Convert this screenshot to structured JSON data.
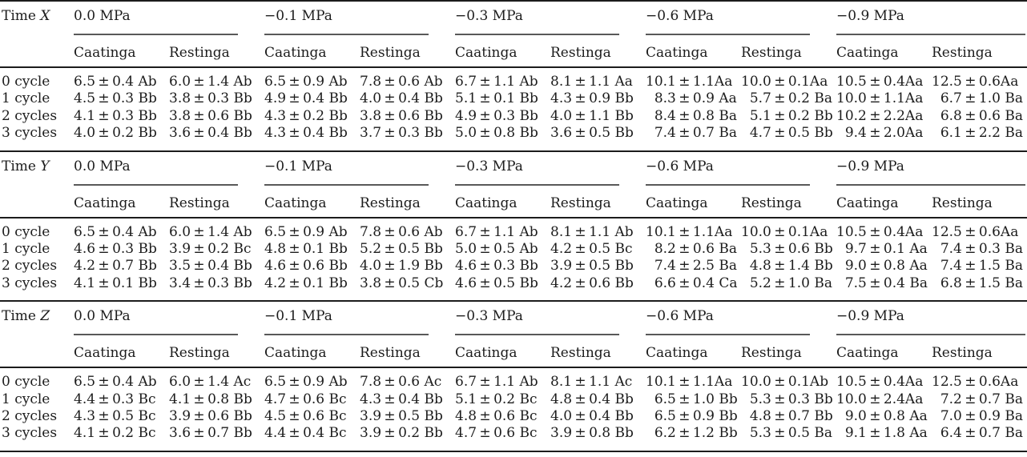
{
  "colors": {
    "background": "#ffffff",
    "text": "#1c1c1c",
    "rule_dark": "#1c1c1c",
    "rule_gray": "#595959"
  },
  "table": {
    "pressure_groups": [
      "0.0 MPa",
      "−0.1 MPa",
      "−0.3 MPa",
      "−0.6 MPa",
      "−0.9 MPa"
    ],
    "site_headers": [
      "Caatinga",
      "Restinga"
    ],
    "row_labels": [
      "0 cycle",
      "1 cycle",
      "2 cycles",
      "3 cycles"
    ],
    "sections": [
      {
        "time_prefix": "Time",
        "time_var": "X",
        "rows": [
          [
            "6.5 ± 0.4 Ab",
            "6.0 ± 1.4 Ab",
            "6.5 ± 0.9 Ab",
            "7.8 ± 0.6 Ab",
            "6.7 ± 1.1 Ab",
            "8.1 ± 1.1 Aa",
            "10.1 ± 1.1Aa",
            "10.0 ± 0.1Aa",
            "10.5 ± 0.4Aa",
            "12.5 ± 0.6Aa"
          ],
          [
            "4.5 ± 0.3 Bb",
            "3.8 ± 0.3 Bb",
            "4.9 ± 0.4 Bb",
            "4.0 ± 0.4 Bb",
            "5.1 ± 0.1 Bb",
            "4.3 ± 0.9 Bb",
            " 8.3 ± 0.9 Aa",
            " 5.7 ± 0.2 Ba",
            "10.0 ± 1.1Aa",
            " 6.7 ± 1.0 Ba"
          ],
          [
            "4.1 ± 0.3 Bb",
            "3.8 ± 0.6 Bb",
            "4.3 ± 0.2 Bb",
            "3.8 ± 0.6 Bb",
            "4.9 ± 0.3 Bb",
            "4.0 ± 1.1 Bb",
            " 8.4 ± 0.8 Ba",
            " 5.1 ± 0.2 Bb",
            "10.2 ± 2.2Aa",
            " 6.8 ± 0.6 Ba"
          ],
          [
            "4.0 ± 0.2 Bb",
            "3.6 ± 0.4 Bb",
            "4.3 ± 0.4 Bb",
            "3.7 ± 0.3 Bb",
            "5.0 ± 0.8 Bb",
            "3.6 ± 0.5 Bb",
            " 7.4 ± 0.7 Ba",
            " 4.7 ± 0.5 Bb",
            " 9.4 ± 2.0Aa",
            " 6.1 ± 2.2 Ba"
          ]
        ]
      },
      {
        "time_prefix": "Time",
        "time_var": "Y",
        "rows": [
          [
            "6.5 ± 0.4 Ab",
            "6.0 ± 1.4 Ab",
            "6.5 ± 0.9 Ab",
            "7.8 ± 0.6 Ab",
            "6.7 ± 1.1 Ab",
            "8.1 ± 1.1 Ab",
            "10.1 ± 1.1Aa",
            "10.0 ± 0.1Aa",
            "10.5 ± 0.4Aa",
            "12.5 ± 0.6Aa"
          ],
          [
            "4.6 ± 0.3 Bb",
            "3.9 ± 0.2 Bc",
            "4.8 ± 0.1 Bb",
            "5.2 ± 0.5 Bb",
            "5.0 ± 0.5 Ab",
            "4.2 ± 0.5 Bc",
            " 8.2 ± 0.6 Ba",
            " 5.3 ± 0.6 Bb",
            " 9.7 ± 0.1 Aa",
            " 7.4 ± 0.3 Ba"
          ],
          [
            "4.2 ± 0.7 Bb",
            "3.5 ± 0.4 Bb",
            "4.6 ± 0.6 Bb",
            "4.0 ± 1.9 Bb",
            "4.6 ± 0.3 Bb",
            "3.9 ± 0.5 Bb",
            " 7.4 ± 2.5 Ba",
            " 4.8 ± 1.4 Bb",
            " 9.0 ± 0.8 Aa",
            " 7.4 ± 1.5 Ba"
          ],
          [
            "4.1 ± 0.1 Bb",
            "3.4 ± 0.3 Bb",
            "4.2 ± 0.1 Bb",
            "3.8 ± 0.5 Cb",
            "4.6 ± 0.5 Bb",
            "4.2 ± 0.6 Bb",
            " 6.6 ± 0.4 Ca",
            " 5.2 ± 1.0 Ba",
            " 7.5 ± 0.4 Ba",
            " 6.8 ± 1.5 Ba"
          ]
        ]
      },
      {
        "time_prefix": "Time",
        "time_var": "Z",
        "rows": [
          [
            "6.5 ± 0.4 Ab",
            "6.0 ± 1.4 Ac",
            "6.5 ± 0.9 Ab",
            "7.8 ± 0.6 Ac",
            "6.7 ± 1.1 Ab",
            "8.1 ± 1.1 Ac",
            "10.1 ± 1.1Aa",
            "10.0 ± 0.1Ab",
            "10.5 ± 0.4Aa",
            "12.5 ± 0.6Aa"
          ],
          [
            "4.4 ± 0.3 Bc",
            "4.1 ± 0.8 Bb",
            "4.7 ± 0.6 Bc",
            "4.3 ± 0.4 Bb",
            "5.1 ± 0.2 Bc",
            "4.8 ± 0.4 Bb",
            " 6.5 ± 1.0 Bb",
            " 5.3 ± 0.3 Bb",
            "10.0 ± 2.4Aa",
            " 7.2 ± 0.7 Ba"
          ],
          [
            "4.3 ± 0.5 Bc",
            "3.9 ± 0.6 Bb",
            "4.5 ± 0.6 Bc",
            "3.9 ± 0.5 Bb",
            "4.8 ± 0.6 Bc",
            "4.0 ± 0.4 Bb",
            " 6.5 ± 0.9 Bb",
            " 4.8 ± 0.7 Bb",
            " 9.0 ± 0.8 Aa",
            " 7.0 ± 0.9 Ba"
          ],
          [
            "4.1 ± 0.2 Bc",
            "3.6 ± 0.7 Bb",
            "4.4 ± 0.4 Bc",
            "3.9 ± 0.2 Bb",
            "4.7 ± 0.6 Bc",
            "3.9 ± 0.8 Bb",
            " 6.2 ± 1.2 Bb",
            " 5.3 ± 0.5 Ba",
            " 9.1 ± 1.8 Aa",
            " 6.4 ± 0.7 Ba"
          ]
        ]
      }
    ]
  }
}
